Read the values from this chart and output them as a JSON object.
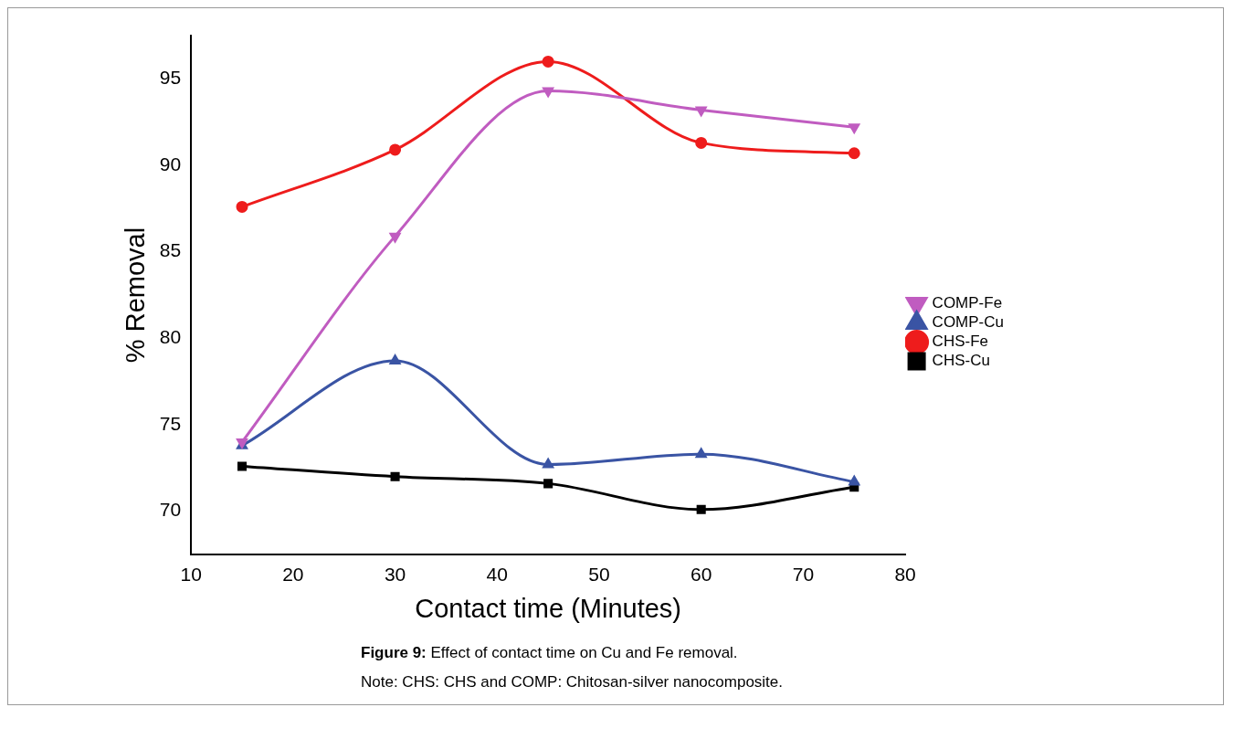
{
  "chart_data": {
    "type": "line",
    "title": "Figure 9: Effect of contact time on Cu and Fe removal.",
    "xlabel": "Contact time (Minutes)",
    "ylabel": "% Removal",
    "x": [
      15,
      30,
      45,
      60,
      75
    ],
    "series": [
      {
        "name": "CHS-Cu",
        "color": "#000000",
        "marker": "square",
        "values": [
          72.6,
          72.0,
          71.6,
          70.1,
          71.4
        ]
      },
      {
        "name": "CHS-Fe",
        "color": "#ee1c1c",
        "marker": "circle",
        "values": [
          87.6,
          90.9,
          96.0,
          91.3,
          90.7
        ]
      },
      {
        "name": "COMP-Cu",
        "color": "#3a54a4",
        "marker": "triangle",
        "values": [
          73.8,
          78.7,
          72.7,
          73.3,
          71.7
        ]
      },
      {
        "name": "COMP-Fe",
        "color": "#c05cc0",
        "marker": "triangle-down",
        "values": [
          74.0,
          85.9,
          94.3,
          93.2,
          92.2
        ]
      }
    ],
    "xlim": [
      10,
      80
    ],
    "xticks": [
      10,
      20,
      30,
      40,
      50,
      60,
      70,
      80
    ],
    "ylim": [
      67.5,
      97.5
    ],
    "yticks": [
      70,
      75,
      80,
      85,
      90,
      95
    ],
    "grid": false,
    "legend": "right",
    "line_style": "solid",
    "annotations": [
      "Note: CHS: CHS and COMP: Chitosan-silver nanocomposite."
    ]
  }
}
